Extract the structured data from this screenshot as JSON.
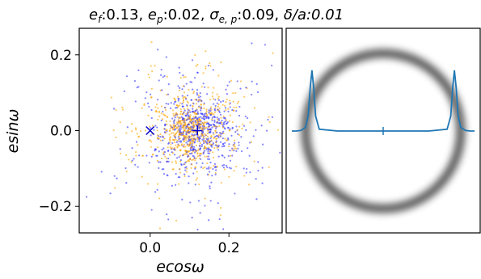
{
  "chart_data": [
    {
      "type": "scatter",
      "title": "e_f:0.13, e_p:0.02, σ_e,p:0.09, δ_a/a:0.01",
      "title_parts": {
        "ef_label": "e",
        "ef_sub": "f",
        "ef_value": ":0.13, ",
        "ep_label": "e",
        "ep_sub": "p",
        "ep_value": ":0.02, ",
        "sigma_label": "σ",
        "sigma_sub": "e, p",
        "sigma_value": ":0.09, ",
        "delta_label": "δ",
        "delta_rest": "/a:0.01"
      },
      "xlabel": "ecosω",
      "ylabel": "esinω",
      "xlim": [
        -0.18,
        0.335
      ],
      "ylim": [
        -0.27,
        0.27
      ],
      "xticks": [
        0.0,
        0.2
      ],
      "xtick_labels": [
        "0.0",
        "0.2"
      ],
      "yticks": [
        -0.2,
        0.0,
        0.2
      ],
      "ytick_labels": [
        "−0.2",
        "0.0",
        "0.2"
      ],
      "grid": false,
      "series": [
        {
          "color": "#3333ff",
          "marker": "dot",
          "center": [
            0.12,
            0.0
          ],
          "spread": 0.095,
          "n_points": 700
        },
        {
          "color": "#ffa500",
          "marker": "dot",
          "center": [
            0.1,
            0.0
          ],
          "spread": 0.085,
          "n_points": 700
        }
      ],
      "markers": [
        {
          "symbol": "x",
          "x": 0.0,
          "y": 0.0,
          "color": "#0000cc"
        },
        {
          "symbol": "+",
          "x": 0.12,
          "y": 0.0,
          "color": "#0000cc"
        }
      ]
    },
    {
      "type": "line",
      "description_free": true,
      "ring": {
        "color": "#000000",
        "relative_radius": 0.9
      },
      "line": {
        "color": "#1f77b4",
        "x": [
          -1.0,
          -0.95,
          -0.9,
          -0.85,
          -0.82,
          -0.8,
          -0.78,
          -0.76,
          -0.74,
          -0.7,
          -0.5,
          0.0,
          0.5,
          0.7,
          0.74,
          0.76,
          0.78,
          0.8,
          0.82,
          0.85,
          0.9,
          0.95,
          1.0
        ],
        "y": [
          0.0,
          0.0,
          0.01,
          0.06,
          0.25,
          0.7,
          1.0,
          0.7,
          0.25,
          0.03,
          0.0,
          0.0,
          0.0,
          0.03,
          0.25,
          0.7,
          1.0,
          0.7,
          0.25,
          0.06,
          0.01,
          0.0,
          0.0
        ]
      },
      "center_marker": {
        "symbol": "|",
        "x": 0.0,
        "color": "#1f77b4"
      }
    }
  ]
}
